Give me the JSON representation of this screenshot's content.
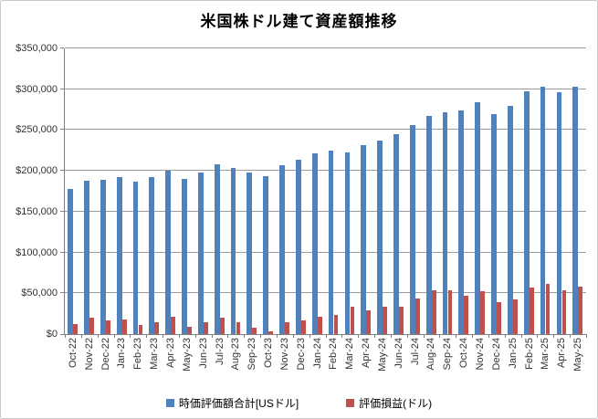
{
  "chart_data": {
    "type": "bar",
    "title": "米国株ドル建て資産額推移",
    "categories": [
      "Oct-22",
      "Nov-22",
      "Dec-22",
      "Jan-23",
      "Feb-23",
      "Mar-23",
      "Apr-23",
      "May-23",
      "Jun-23",
      "Jul-23",
      "Aug-23",
      "Sep-23",
      "Oct-23",
      "Nov-23",
      "Dec-23",
      "Jan-24",
      "Feb-24",
      "Mar-24",
      "Apr-24",
      "May-24",
      "Jun-24",
      "Jul-24",
      "Aug-24",
      "Sep-24",
      "Oct-24",
      "Nov-24",
      "Dec-24",
      "Jan-25",
      "Feb-25",
      "Mar-25",
      "Apr-25",
      "May-25"
    ],
    "series": [
      {
        "name": "時価評価額合計[USドル]",
        "color": "#4F81BD",
        "values": [
          178000,
          188000,
          189000,
          192000,
          187000,
          192000,
          200000,
          190000,
          198000,
          208000,
          203000,
          198000,
          193000,
          207000,
          214000,
          221000,
          225000,
          222000,
          231000,
          237000,
          245000,
          256000,
          267000,
          272000,
          274000,
          284000,
          270000,
          280000,
          297000,
          303000,
          296000,
          303000
        ]
      },
      {
        "name": "評価損益(ドル)",
        "color": "#C0504D",
        "values": [
          12000,
          20000,
          17000,
          18000,
          11000,
          15000,
          21000,
          9000,
          15000,
          20000,
          15000,
          8000,
          3000,
          14000,
          17000,
          21000,
          23000,
          34000,
          29000,
          34000,
          33000,
          44000,
          54000,
          54000,
          47000,
          53000,
          39000,
          43000,
          57000,
          62000,
          54000,
          58000
        ]
      }
    ],
    "ylim": [
      0,
      350000
    ],
    "yticks": [
      {
        "value": 0,
        "label": "$0"
      },
      {
        "value": 50000,
        "label": "$50,000"
      },
      {
        "value": 100000,
        "label": "$100,000"
      },
      {
        "value": 150000,
        "label": "$150,000"
      },
      {
        "value": 200000,
        "label": "$200,000"
      },
      {
        "value": 250000,
        "label": "$250,000"
      },
      {
        "value": 300000,
        "label": "$300,000"
      },
      {
        "value": 350000,
        "label": "$350,000"
      }
    ],
    "grid": true,
    "legend_position": "bottom",
    "xlabel": "",
    "ylabel": ""
  },
  "colors": {
    "background": "#FFFFFF",
    "border": "#C9C9C9",
    "axis": "#808080",
    "gridline": "#9B9B9B",
    "tick_text": "#333333",
    "title_text": "#000000"
  }
}
